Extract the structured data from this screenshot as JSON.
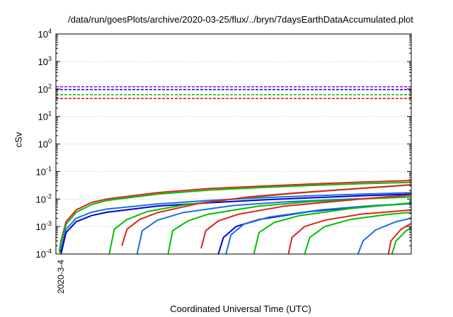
{
  "chart_data": {
    "type": "line",
    "title": "/data/run/goesPlots/archive/2020-03-25/flux/../bryn/7daysEarthDataAccumulated.plot",
    "xlabel": "Coordinated Universal Time (UTC)",
    "ylabel": "cSv",
    "y_scale": "log",
    "ylim": [
      0.0001,
      10000
    ],
    "y_ticks": [
      {
        "value": 10000,
        "base": "10",
        "exp": "4"
      },
      {
        "value": 1000,
        "base": "10",
        "exp": "3"
      },
      {
        "value": 100,
        "base": "10",
        "exp": "2"
      },
      {
        "value": 10,
        "base": "10",
        "exp": "1"
      },
      {
        "value": 1,
        "base": "10",
        "exp": "0"
      },
      {
        "value": 0.1,
        "base": "10",
        "exp": "-1"
      },
      {
        "value": 0.01,
        "base": "10",
        "exp": "-2"
      },
      {
        "value": 0.001,
        "base": "10",
        "exp": "-3"
      },
      {
        "value": 0.0001,
        "base": "10",
        "exp": "-4"
      }
    ],
    "xlim": [
      0,
      7
    ],
    "x_unit": "days since 2020-03-04 00:00 UTC",
    "x_ticks": [
      {
        "value": 0.1,
        "label": "2020-3-4"
      }
    ],
    "grid": {
      "horizontal": true,
      "style": "dotted"
    },
    "thresholds": [
      {
        "value": 120,
        "color": "#9400d3"
      },
      {
        "value": 95,
        "color": "#0000ff"
      },
      {
        "value": 62,
        "color": "#00c000"
      },
      {
        "value": 45,
        "color": "#ff0000"
      }
    ],
    "series": [
      {
        "color": "#e02020",
        "values": [
          [
            0.07,
            0.00013
          ],
          [
            0.1,
            0.0003
          ],
          [
            0.2,
            0.0015
          ],
          [
            0.4,
            0.004
          ],
          [
            0.7,
            0.0075
          ],
          [
            1,
            0.01
          ],
          [
            2,
            0.017
          ],
          [
            3,
            0.024
          ],
          [
            4,
            0.029
          ],
          [
            5,
            0.035
          ],
          [
            6,
            0.041
          ],
          [
            7,
            0.047
          ]
        ]
      },
      {
        "color": "#00c000",
        "values": [
          [
            0.07,
            0.00011
          ],
          [
            0.1,
            0.00025
          ],
          [
            0.2,
            0.0012
          ],
          [
            0.4,
            0.0033
          ],
          [
            0.7,
            0.0063
          ],
          [
            1,
            0.0088
          ],
          [
            2,
            0.015
          ],
          [
            3,
            0.021
          ],
          [
            4,
            0.026
          ],
          [
            5,
            0.031
          ],
          [
            6,
            0.036
          ],
          [
            7,
            0.04
          ]
        ]
      },
      {
        "color": "#1a70e0",
        "values": [
          [
            0.09,
            0.00012
          ],
          [
            0.2,
            0.0008
          ],
          [
            0.4,
            0.002
          ],
          [
            0.7,
            0.0033
          ],
          [
            1,
            0.0043
          ],
          [
            2,
            0.0066
          ],
          [
            3,
            0.0088
          ],
          [
            4,
            0.011
          ],
          [
            5,
            0.013
          ],
          [
            6,
            0.015
          ],
          [
            7,
            0.017
          ]
        ]
      },
      {
        "color": "#0000d0",
        "values": [
          [
            0.1,
            0.0001
          ],
          [
            0.2,
            0.0006
          ],
          [
            0.4,
            0.0015
          ],
          [
            0.7,
            0.0025
          ],
          [
            1,
            0.0033
          ],
          [
            2,
            0.0055
          ],
          [
            3,
            0.0073
          ],
          [
            4,
            0.0092
          ],
          [
            5,
            0.011
          ],
          [
            6,
            0.013
          ],
          [
            7,
            0.015
          ]
        ]
      },
      {
        "color": "#00c000",
        "values": [
          [
            1.05,
            0.0001
          ],
          [
            1.15,
            0.0008
          ],
          [
            1.4,
            0.0018
          ],
          [
            1.8,
            0.0035
          ],
          [
            2.5,
            0.006
          ],
          [
            3.5,
            0.01
          ],
          [
            4.5,
            0.015
          ],
          [
            5.5,
            0.021
          ],
          [
            6.5,
            0.028
          ],
          [
            7,
            0.033
          ]
        ]
      },
      {
        "color": "#e02020",
        "values": [
          [
            1.3,
            0.0002
          ],
          [
            1.4,
            0.0008
          ],
          [
            1.65,
            0.0018
          ],
          [
            2,
            0.0032
          ],
          [
            2.8,
            0.0068
          ],
          [
            3.8,
            0.012
          ],
          [
            4.8,
            0.017
          ],
          [
            5.8,
            0.023
          ],
          [
            6.8,
            0.031
          ],
          [
            7,
            0.033
          ]
        ]
      },
      {
        "color": "#1a70e0",
        "values": [
          [
            1.6,
            0.0001
          ],
          [
            1.7,
            0.0007
          ],
          [
            2,
            0.0017
          ],
          [
            2.5,
            0.0032
          ],
          [
            3.5,
            0.0058
          ],
          [
            4.5,
            0.0078
          ],
          [
            5.5,
            0.0095
          ],
          [
            6.5,
            0.011
          ],
          [
            7,
            0.012
          ]
        ]
      },
      {
        "color": "#00c000",
        "values": [
          [
            2.21,
            0.0001
          ],
          [
            2.3,
            0.0007
          ],
          [
            2.6,
            0.0016
          ],
          [
            3,
            0.0028
          ],
          [
            4,
            0.0055
          ],
          [
            5,
            0.008
          ],
          [
            6,
            0.01
          ],
          [
            7,
            0.012
          ]
        ]
      },
      {
        "color": "#e02020",
        "values": [
          [
            2.86,
            0.00016
          ],
          [
            2.95,
            0.0007
          ],
          [
            3.2,
            0.0016
          ],
          [
            3.6,
            0.0028
          ],
          [
            4.5,
            0.0055
          ],
          [
            5.5,
            0.0082
          ],
          [
            6.5,
            0.012
          ],
          [
            7,
            0.014
          ]
        ]
      },
      {
        "color": "#0000d0",
        "values": [
          [
            3.2,
            0.0001
          ],
          [
            3.3,
            0.0004
          ],
          [
            3.55,
            0.001
          ],
          [
            4,
            0.0018
          ],
          [
            5,
            0.0035
          ],
          [
            6,
            0.0052
          ],
          [
            7,
            0.0068
          ]
        ]
      },
      {
        "color": "#1a70e0",
        "values": [
          [
            3.35,
            0.0001
          ],
          [
            3.45,
            0.0005
          ],
          [
            3.7,
            0.0012
          ],
          [
            4.2,
            0.0022
          ],
          [
            5.2,
            0.004
          ],
          [
            6.2,
            0.0057
          ],
          [
            7,
            0.0068
          ]
        ]
      },
      {
        "color": "#00c000",
        "values": [
          [
            3.9,
            0.0001
          ],
          [
            4,
            0.0006
          ],
          [
            4.3,
            0.0014
          ],
          [
            4.8,
            0.0025
          ],
          [
            5.8,
            0.0045
          ],
          [
            7,
            0.0072
          ]
        ]
      },
      {
        "color": "#e02020",
        "values": [
          [
            4.58,
            0.0001
          ],
          [
            4.65,
            0.0004
          ],
          [
            4.9,
            0.001
          ],
          [
            5.3,
            0.0017
          ],
          [
            6,
            0.0028
          ],
          [
            7,
            0.004
          ]
        ]
      },
      {
        "color": "#00c000",
        "values": [
          [
            4.9,
            0.0001
          ],
          [
            5,
            0.0004
          ],
          [
            5.3,
            0.001
          ],
          [
            5.8,
            0.0018
          ],
          [
            6.5,
            0.0027
          ],
          [
            7,
            0.0033
          ]
        ]
      },
      {
        "color": "#1a70e0",
        "values": [
          [
            5.95,
            0.0001
          ],
          [
            6.05,
            0.0003
          ],
          [
            6.3,
            0.00075
          ],
          [
            6.7,
            0.0015
          ],
          [
            7,
            0.002
          ]
        ]
      },
      {
        "color": "#e02020",
        "values": [
          [
            6.55,
            0.0001
          ],
          [
            6.6,
            0.0003
          ],
          [
            6.8,
            0.0008
          ],
          [
            7,
            0.0013
          ]
        ]
      },
      {
        "color": "#00c000",
        "values": [
          [
            6.62,
            0.0001
          ],
          [
            6.7,
            0.0003
          ],
          [
            6.9,
            0.0007
          ],
          [
            7,
            0.0009
          ]
        ]
      }
    ]
  }
}
